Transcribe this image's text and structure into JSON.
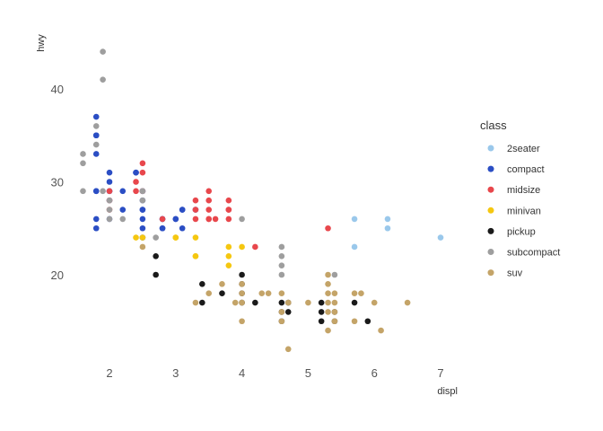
{
  "chart_data": {
    "type": "scatter",
    "xlabel": "displ",
    "ylabel": "hwy",
    "xlim": [
      1.6,
      7.0
    ],
    "ylim": [
      12,
      44
    ],
    "x_ticks": [
      2,
      3,
      4,
      5,
      6,
      7
    ],
    "y_ticks": [
      20,
      30,
      40
    ],
    "grid": false,
    "legend": {
      "title": "class",
      "position": "right"
    },
    "series": [
      {
        "name": "2seater",
        "color": "#9ac8eb",
        "points": [
          [
            5.7,
            26
          ],
          [
            5.7,
            23
          ],
          [
            6.2,
            26
          ],
          [
            6.2,
            25
          ],
          [
            7.0,
            24
          ]
        ]
      },
      {
        "name": "compact",
        "color": "#2b4ec4",
        "points": [
          [
            1.8,
            29
          ],
          [
            1.8,
            29
          ],
          [
            2.0,
            31
          ],
          [
            2.0,
            30
          ],
          [
            2.8,
            26
          ],
          [
            2.8,
            26
          ],
          [
            3.1,
            27
          ],
          [
            1.8,
            26
          ],
          [
            1.8,
            25
          ],
          [
            2.0,
            28
          ],
          [
            2.0,
            29
          ],
          [
            2.8,
            25
          ],
          [
            2.8,
            25
          ],
          [
            3.1,
            25
          ],
          [
            3.1,
            27
          ],
          [
            2.2,
            29
          ],
          [
            2.2,
            27
          ],
          [
            2.4,
            31
          ],
          [
            2.4,
            31
          ],
          [
            3.0,
            26
          ],
          [
            3.0,
            26
          ],
          [
            3.3,
            27
          ],
          [
            1.8,
            33
          ],
          [
            1.8,
            35
          ],
          [
            1.8,
            37
          ],
          [
            1.8,
            35
          ],
          [
            2.0,
            29
          ],
          [
            2.0,
            26
          ],
          [
            2.5,
            29
          ],
          [
            2.5,
            28
          ],
          [
            2.5,
            29
          ],
          [
            2.5,
            27
          ],
          [
            2.5,
            27
          ],
          [
            2.5,
            25
          ],
          [
            2.5,
            24
          ],
          [
            2.5,
            26
          ]
        ]
      },
      {
        "name": "midsize",
        "color": "#e8474c",
        "points": [
          [
            2.4,
            30
          ],
          [
            2.4,
            29
          ],
          [
            2.5,
            32
          ],
          [
            2.5,
            31
          ],
          [
            2.5,
            29
          ],
          [
            2.8,
            26
          ],
          [
            3.3,
            28
          ],
          [
            3.3,
            27
          ],
          [
            3.5,
            28
          ],
          [
            3.5,
            29
          ],
          [
            3.5,
            27
          ],
          [
            3.5,
            26
          ],
          [
            3.6,
            26
          ],
          [
            3.8,
            28
          ],
          [
            3.8,
            27
          ],
          [
            3.8,
            26
          ],
          [
            4.2,
            23
          ],
          [
            5.3,
            25
          ],
          [
            3.8,
            27
          ],
          [
            3.5,
            26
          ],
          [
            3.3,
            26
          ],
          [
            2.0,
            29
          ],
          [
            2.0,
            28
          ],
          [
            2.0,
            27
          ]
        ]
      },
      {
        "name": "minivan",
        "color": "#f5c710",
        "points": [
          [
            2.4,
            24
          ],
          [
            3.0,
            24
          ],
          [
            3.3,
            22
          ],
          [
            3.3,
            22
          ],
          [
            3.3,
            24
          ],
          [
            3.8,
            23
          ],
          [
            3.8,
            22
          ],
          [
            3.8,
            21
          ],
          [
            4.0,
            23
          ],
          [
            2.5,
            24
          ],
          [
            3.0,
            24
          ]
        ]
      },
      {
        "name": "pickup",
        "color": "#1a1a1a",
        "points": [
          [
            2.7,
            20
          ],
          [
            2.7,
            22
          ],
          [
            3.4,
            17
          ],
          [
            3.4,
            19
          ],
          [
            3.7,
            18
          ],
          [
            4.0,
            20
          ],
          [
            4.0,
            19
          ],
          [
            4.0,
            18
          ],
          [
            4.2,
            17
          ],
          [
            4.6,
            17
          ],
          [
            4.6,
            15
          ],
          [
            4.6,
            16
          ],
          [
            4.7,
            17
          ],
          [
            4.7,
            16
          ],
          [
            5.2,
            16
          ],
          [
            5.2,
            15
          ],
          [
            5.2,
            17
          ],
          [
            5.4,
            15
          ],
          [
            5.4,
            16
          ],
          [
            5.7,
            17
          ],
          [
            5.9,
            15
          ],
          [
            4.0,
            17
          ]
        ]
      },
      {
        "name": "subcompact",
        "color": "#9e9e9e",
        "points": [
          [
            1.6,
            33
          ],
          [
            1.6,
            32
          ],
          [
            1.6,
            29
          ],
          [
            1.8,
            34
          ],
          [
            1.8,
            36
          ],
          [
            1.9,
            44
          ],
          [
            1.9,
            41
          ],
          [
            1.9,
            29
          ],
          [
            2.0,
            28
          ],
          [
            2.0,
            27
          ],
          [
            2.0,
            26
          ],
          [
            2.2,
            26
          ],
          [
            2.5,
            29
          ],
          [
            2.5,
            28
          ],
          [
            2.7,
            24
          ],
          [
            4.0,
            26
          ],
          [
            4.6,
            23
          ],
          [
            4.6,
            22
          ],
          [
            4.6,
            21
          ],
          [
            4.6,
            20
          ],
          [
            5.4,
            20
          ]
        ]
      },
      {
        "name": "suv",
        "color": "#c4a468",
        "points": [
          [
            2.5,
            23
          ],
          [
            3.3,
            17
          ],
          [
            3.5,
            18
          ],
          [
            3.7,
            19
          ],
          [
            3.9,
            17
          ],
          [
            4.0,
            19
          ],
          [
            4.0,
            18
          ],
          [
            4.0,
            17
          ],
          [
            4.0,
            15
          ],
          [
            4.3,
            18
          ],
          [
            4.4,
            18
          ],
          [
            4.6,
            16
          ],
          [
            4.6,
            15
          ],
          [
            4.7,
            12
          ],
          [
            4.7,
            17
          ],
          [
            5.0,
            17
          ],
          [
            5.3,
            19
          ],
          [
            5.3,
            18
          ],
          [
            5.3,
            17
          ],
          [
            5.3,
            16
          ],
          [
            5.3,
            14
          ],
          [
            5.4,
            18
          ],
          [
            5.4,
            17
          ],
          [
            5.4,
            16
          ],
          [
            5.4,
            15
          ],
          [
            5.7,
            18
          ],
          [
            5.7,
            15
          ],
          [
            5.8,
            18
          ],
          [
            6.0,
            17
          ],
          [
            6.1,
            14
          ],
          [
            6.5,
            17
          ],
          [
            4.6,
            18
          ],
          [
            5.3,
            20
          ]
        ]
      }
    ]
  }
}
